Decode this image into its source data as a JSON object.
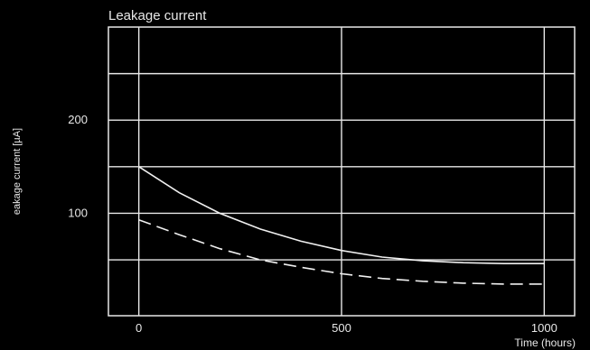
{
  "chart_data": {
    "type": "line",
    "title": "Leakage current",
    "xlabel": "Time (hours)",
    "ylabel": "eakage current [µA]",
    "xlim": [
      -75,
      1075
    ],
    "ylim": [
      -10,
      300
    ],
    "x_ticks": [
      0,
      500,
      1000
    ],
    "y_ticks": [
      100,
      200
    ],
    "x_tick_labels": [
      "0",
      "500",
      "1000"
    ],
    "y_tick_labels": [
      "100",
      "200"
    ],
    "grid": true,
    "series": [
      {
        "style": "solid",
        "x": [
          0,
          100,
          200,
          300,
          400,
          500,
          600,
          700,
          800,
          900,
          1000
        ],
        "y": [
          150,
          122,
          100,
          83,
          70,
          60,
          53,
          49,
          47,
          46,
          46
        ]
      },
      {
        "style": "dashed",
        "x": [
          0,
          100,
          200,
          300,
          400,
          500,
          600,
          700,
          800,
          900,
          1000
        ],
        "y": [
          93,
          77,
          62,
          50,
          42,
          35,
          30,
          27,
          25,
          24,
          24
        ]
      }
    ]
  }
}
